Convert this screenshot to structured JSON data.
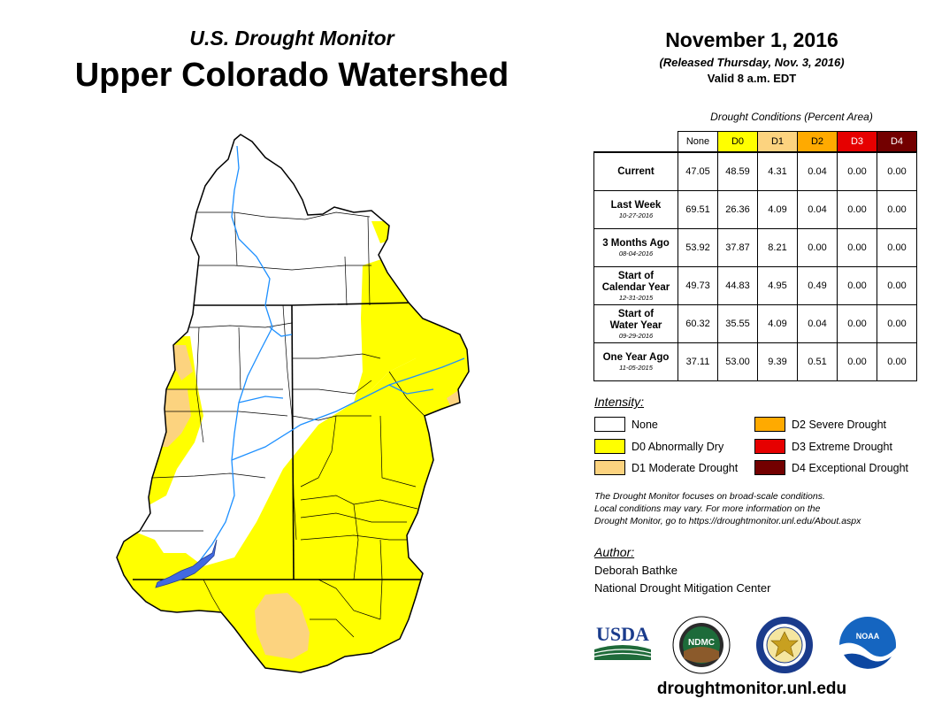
{
  "header": {
    "subtitle": "U.S. Drought Monitor",
    "title": "Upper Colorado Watershed",
    "date": "November 1, 2016",
    "released": "(Released Thursday, Nov. 3, 2016)",
    "valid": "Valid 8 a.m. EDT"
  },
  "table": {
    "caption": "Drought Conditions (Percent Area)",
    "columns": [
      {
        "label": "None",
        "color": "#ffffff"
      },
      {
        "label": "D0",
        "color": "#ffff00"
      },
      {
        "label": "D1",
        "color": "#fcd37f"
      },
      {
        "label": "D2",
        "color": "#ffaa00"
      },
      {
        "label": "D3",
        "color": "#e60000"
      },
      {
        "label": "D4",
        "color": "#730000"
      }
    ],
    "rows": [
      {
        "line1": "Current",
        "line2": "",
        "date": "",
        "values": [
          "47.05",
          "48.59",
          "4.31",
          "0.04",
          "0.00",
          "0.00"
        ]
      },
      {
        "line1": "Last Week",
        "line2": "",
        "date": "10-27-2016",
        "values": [
          "69.51",
          "26.36",
          "4.09",
          "0.04",
          "0.00",
          "0.00"
        ]
      },
      {
        "line1": "3 Months Ago",
        "line2": "",
        "date": "08-04-2016",
        "values": [
          "53.92",
          "37.87",
          "8.21",
          "0.00",
          "0.00",
          "0.00"
        ]
      },
      {
        "line1": "Start of",
        "line2": "Calendar Year",
        "date": "12-31-2015",
        "values": [
          "49.73",
          "44.83",
          "4.95",
          "0.49",
          "0.00",
          "0.00"
        ]
      },
      {
        "line1": "Start of",
        "line2": "Water Year",
        "date": "09-29-2016",
        "values": [
          "60.32",
          "35.55",
          "4.09",
          "0.04",
          "0.00",
          "0.00"
        ]
      },
      {
        "line1": "One Year Ago",
        "line2": "",
        "date": "11-05-2015",
        "values": [
          "37.11",
          "53.00",
          "9.39",
          "0.51",
          "0.00",
          "0.00"
        ]
      }
    ]
  },
  "legend": {
    "title": "Intensity:",
    "items": [
      {
        "label": "None",
        "color": "#ffffff"
      },
      {
        "label": "D0 Abnormally Dry",
        "color": "#ffff00"
      },
      {
        "label": "D1 Moderate Drought",
        "color": "#fcd37f"
      },
      {
        "label": "D2 Severe Drought",
        "color": "#ffaa00"
      },
      {
        "label": "D3 Extreme Drought",
        "color": "#e60000"
      },
      {
        "label": "D4 Exceptional Drought",
        "color": "#730000"
      }
    ]
  },
  "note": {
    "line1": "The Drought Monitor focuses on broad-scale conditions.",
    "line2": "Local conditions may vary. For more information on the",
    "line3": "Drought Monitor, go to https://droughtmonitor.unl.edu/About.aspx"
  },
  "author": {
    "title": "Author:",
    "name": "Deborah Bathke",
    "org": "National Drought Mitigation Center"
  },
  "logos": {
    "usda": "USDA",
    "ndmc": "NDMC",
    "noaa": "NOAA"
  },
  "website": "droughtmonitor.unl.edu"
}
